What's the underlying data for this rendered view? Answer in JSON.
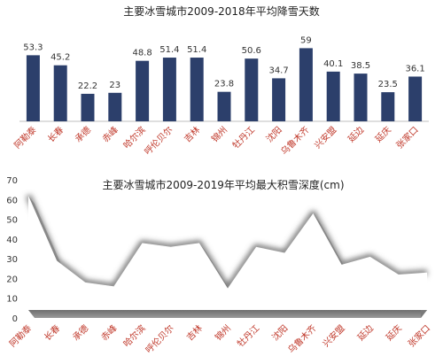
{
  "chart_data": [
    {
      "type": "bar",
      "title": "主要冰雪城市2009-2018年平均降雪天数",
      "categories": [
        "阿勒泰",
        "长春",
        "承德",
        "赤峰",
        "哈尔滨",
        "呼伦贝尔",
        "吉林",
        "锦州",
        "牡丹江",
        "沈阳",
        "乌鲁木齐",
        "兴安盟",
        "延边",
        "延庆",
        "张家口"
      ],
      "values": [
        53.3,
        45.2,
        22.2,
        23,
        48.8,
        51.4,
        51.4,
        23.8,
        50.6,
        34.7,
        59,
        40.1,
        38.5,
        23.5,
        36.1
      ],
      "value_labels": [
        "53.3",
        "45.2",
        "22.2",
        "23",
        "48.8",
        "51.4",
        "51.4",
        "23.8",
        "50.6",
        "34.7",
        "59",
        "40.1",
        "38.5",
        "23.5",
        "36.1"
      ],
      "xlabel": "",
      "ylabel": "",
      "ylim": [
        0,
        60
      ],
      "grid": false,
      "bar_color": "#2c3f6b",
      "label_color": "#c0392b"
    },
    {
      "type": "area",
      "title": "主要冰雪城市2009-2019年平均最大积雪深度(cm)",
      "categories": [
        "阿勒泰",
        "长春",
        "承德",
        "赤峰",
        "哈尔滨",
        "呼伦贝尔",
        "吉林",
        "锦州",
        "牡丹江",
        "沈阳",
        "乌鲁木齐",
        "兴安盟",
        "延边",
        "延庆",
        "张家口"
      ],
      "values": [
        62,
        29,
        18,
        16,
        38,
        36,
        38,
        15,
        36,
        33,
        53,
        27,
        31,
        22,
        23
      ],
      "xlabel": "",
      "ylabel": "",
      "ylim": [
        0,
        70
      ],
      "yticks": [
        0,
        10,
        20,
        30,
        40,
        50,
        60,
        70
      ],
      "grid": false,
      "fill_color": "#8c8c8c",
      "label_color": "#c0392b"
    }
  ]
}
